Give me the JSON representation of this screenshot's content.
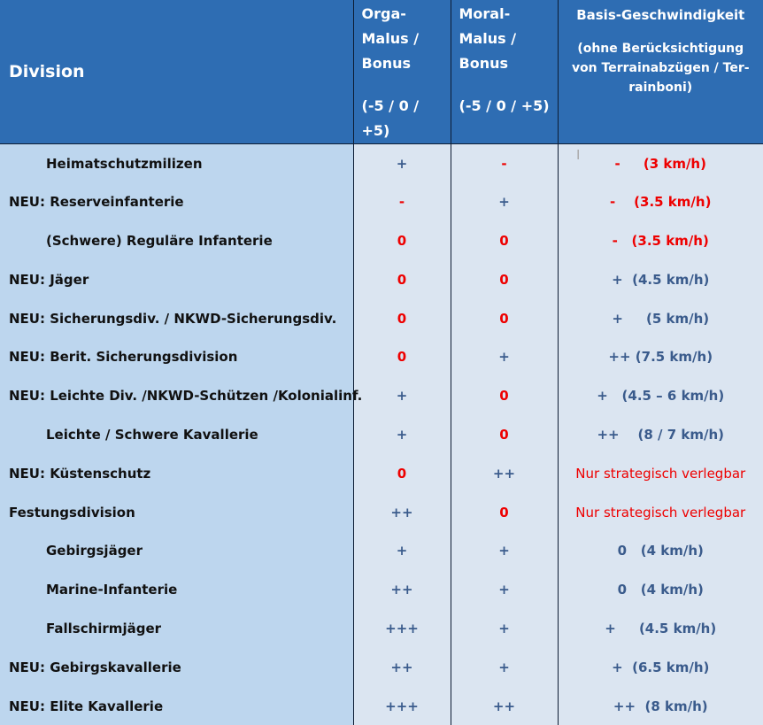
{
  "header": {
    "division": "Division",
    "orga": [
      "Orga-",
      "Malus /",
      "Bonus",
      "(-5 / 0 / +5)"
    ],
    "moral": [
      "Moral-",
      "Malus /",
      "Bonus",
      "(-5 / 0 / +5)"
    ],
    "speed_title": "Basis-Geschwindigkeit",
    "speed_note": "(ohne Berücksichtigung von Terrainabzügen  / Ter-rainboni)"
  },
  "rows": [
    {
      "division": "Heimatschutzmilizen",
      "orga": "+",
      "moral": "-",
      "speed": "-     (3 km/h)"
    },
    {
      "division": "NEU: Reserveinfanterie",
      "orga": "-",
      "moral": "+",
      "speed": "-    (3.5 km/h)"
    },
    {
      "division": "(Schwere) Reguläre Infanterie",
      "orga": "0",
      "moral": "0",
      "speed": "-   (3.5 km/h)"
    },
    {
      "division": "NEU: Jäger",
      "orga": "0",
      "moral": "0",
      "speed": "+  (4.5 km/h)"
    },
    {
      "division": "NEU: Sicherungsdiv. / NKWD-Sicherungsdiv.",
      "orga": "0",
      "moral": "0",
      "speed": "+     (5 km/h)"
    },
    {
      "division": "NEU: Berit. Sicherungsdivision",
      "orga": "0",
      "moral": "+",
      "speed": "++ (7.5 km/h)"
    },
    {
      "division": "NEU: Leichte Div. /NKWD-Schützen /Kolonialinf.",
      "orga": "+",
      "moral": "0",
      "speed": "+   (4.5 – 6 km/h)"
    },
    {
      "division": "Leichte / Schwere Kavallerie",
      "orga": "+",
      "moral": "0",
      "speed": "++    (8 / 7 km/h)"
    },
    {
      "division": "NEU: Küstenschutz",
      "orga": "0",
      "moral": "++",
      "speed": "Nur strategisch verlegbar"
    },
    {
      "division": "Festungsdivision",
      "orga": "++",
      "moral": "0",
      "speed": "Nur strategisch verlegbar"
    },
    {
      "division": "Gebirgsjäger",
      "orga": "+",
      "moral": "+",
      "speed": "0   (4 km/h)"
    },
    {
      "division": "Marine-Infanterie",
      "orga": "++",
      "moral": "+",
      "speed": "0   (4 km/h)"
    },
    {
      "division": "Fallschirmjäger",
      "orga": "+++",
      "moral": "+",
      "speed": "+     (4.5 km/h)"
    },
    {
      "division": "NEU: Gebirgskavallerie",
      "orga": "++",
      "moral": "+",
      "speed": "+  (6.5 km/h)"
    },
    {
      "division": "NEU: Elite Kavallerie",
      "orga": "+++",
      "moral": "++",
      "speed": "++  (8 km/h)"
    }
  ],
  "colors": {
    "header_bg": "#2e6db3",
    "division_bg": "#bdd6ee",
    "cell_bg": "#dbe5f1",
    "blue_text": "#3a5b8c",
    "red_text": "#ee0000"
  }
}
